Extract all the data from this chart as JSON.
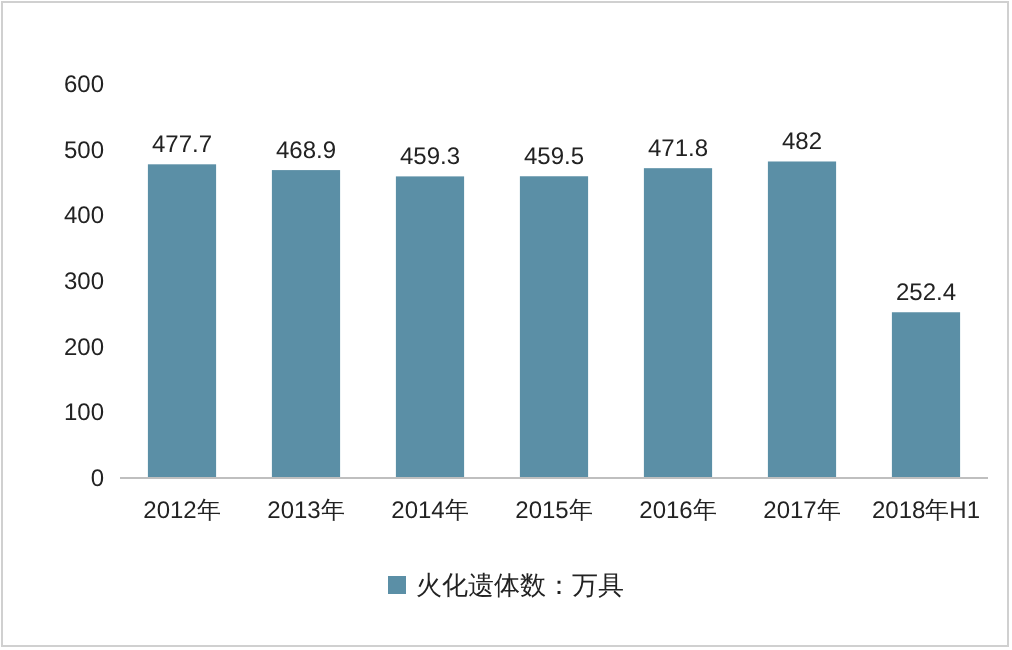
{
  "chart_data": {
    "type": "bar",
    "categories": [
      "2012年",
      "2013年",
      "2014年",
      "2015年",
      "2016年",
      "2017年",
      "2018年H1"
    ],
    "series": [
      {
        "name": "火化遗体数：万具",
        "color": "#5b8fa6",
        "values": [
          477.7,
          468.9,
          459.3,
          459.5,
          471.8,
          482,
          252.4
        ]
      }
    ],
    "value_labels": [
      "477.7",
      "468.9",
      "459.3",
      "459.5",
      "471.8",
      "482",
      "252.4"
    ],
    "ylim": [
      0,
      600
    ],
    "yticks": [
      0,
      100,
      200,
      300,
      400,
      500,
      600
    ],
    "grid": false,
    "legend": "bottom"
  }
}
